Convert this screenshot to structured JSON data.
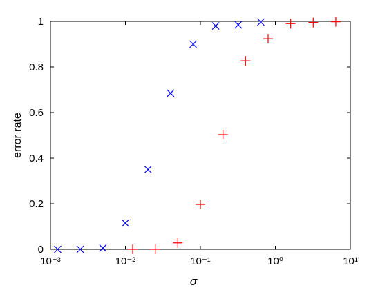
{
  "chart_data": {
    "type": "scatter",
    "xlabel": "σ",
    "ylabel": "error rate",
    "xscale": "log",
    "xlim": [
      0.001,
      10
    ],
    "xticks": [
      {
        "value": 0.001,
        "label": "10⁻³"
      },
      {
        "value": 0.01,
        "label": "10⁻²"
      },
      {
        "value": 0.1,
        "label": "10⁻¹"
      },
      {
        "value": 1,
        "label": "10⁰"
      },
      {
        "value": 10,
        "label": "10¹"
      }
    ],
    "ylim": [
      0,
      1
    ],
    "yticks": [
      0,
      0.2,
      0.4,
      0.6,
      0.8,
      1
    ],
    "grid": false,
    "series": [
      {
        "marker": "x",
        "color": "#0000ff",
        "x": [
          0.00125,
          0.0025,
          0.005,
          0.01,
          0.02,
          0.04,
          0.08,
          0.16,
          0.32,
          0.64
        ],
        "values": [
          0,
          0,
          0.005,
          0.115,
          0.35,
          0.685,
          0.9,
          0.98,
          0.985,
          0.997
        ]
      },
      {
        "marker": "+",
        "color": "#ff0000",
        "x": [
          0.0125,
          0.025,
          0.05,
          0.1,
          0.2,
          0.4,
          0.8,
          1.6,
          3.2,
          6.4
        ],
        "values": [
          0,
          0,
          0.028,
          0.197,
          0.503,
          0.827,
          0.924,
          0.99,
          0.995,
          0.998
        ]
      }
    ]
  }
}
